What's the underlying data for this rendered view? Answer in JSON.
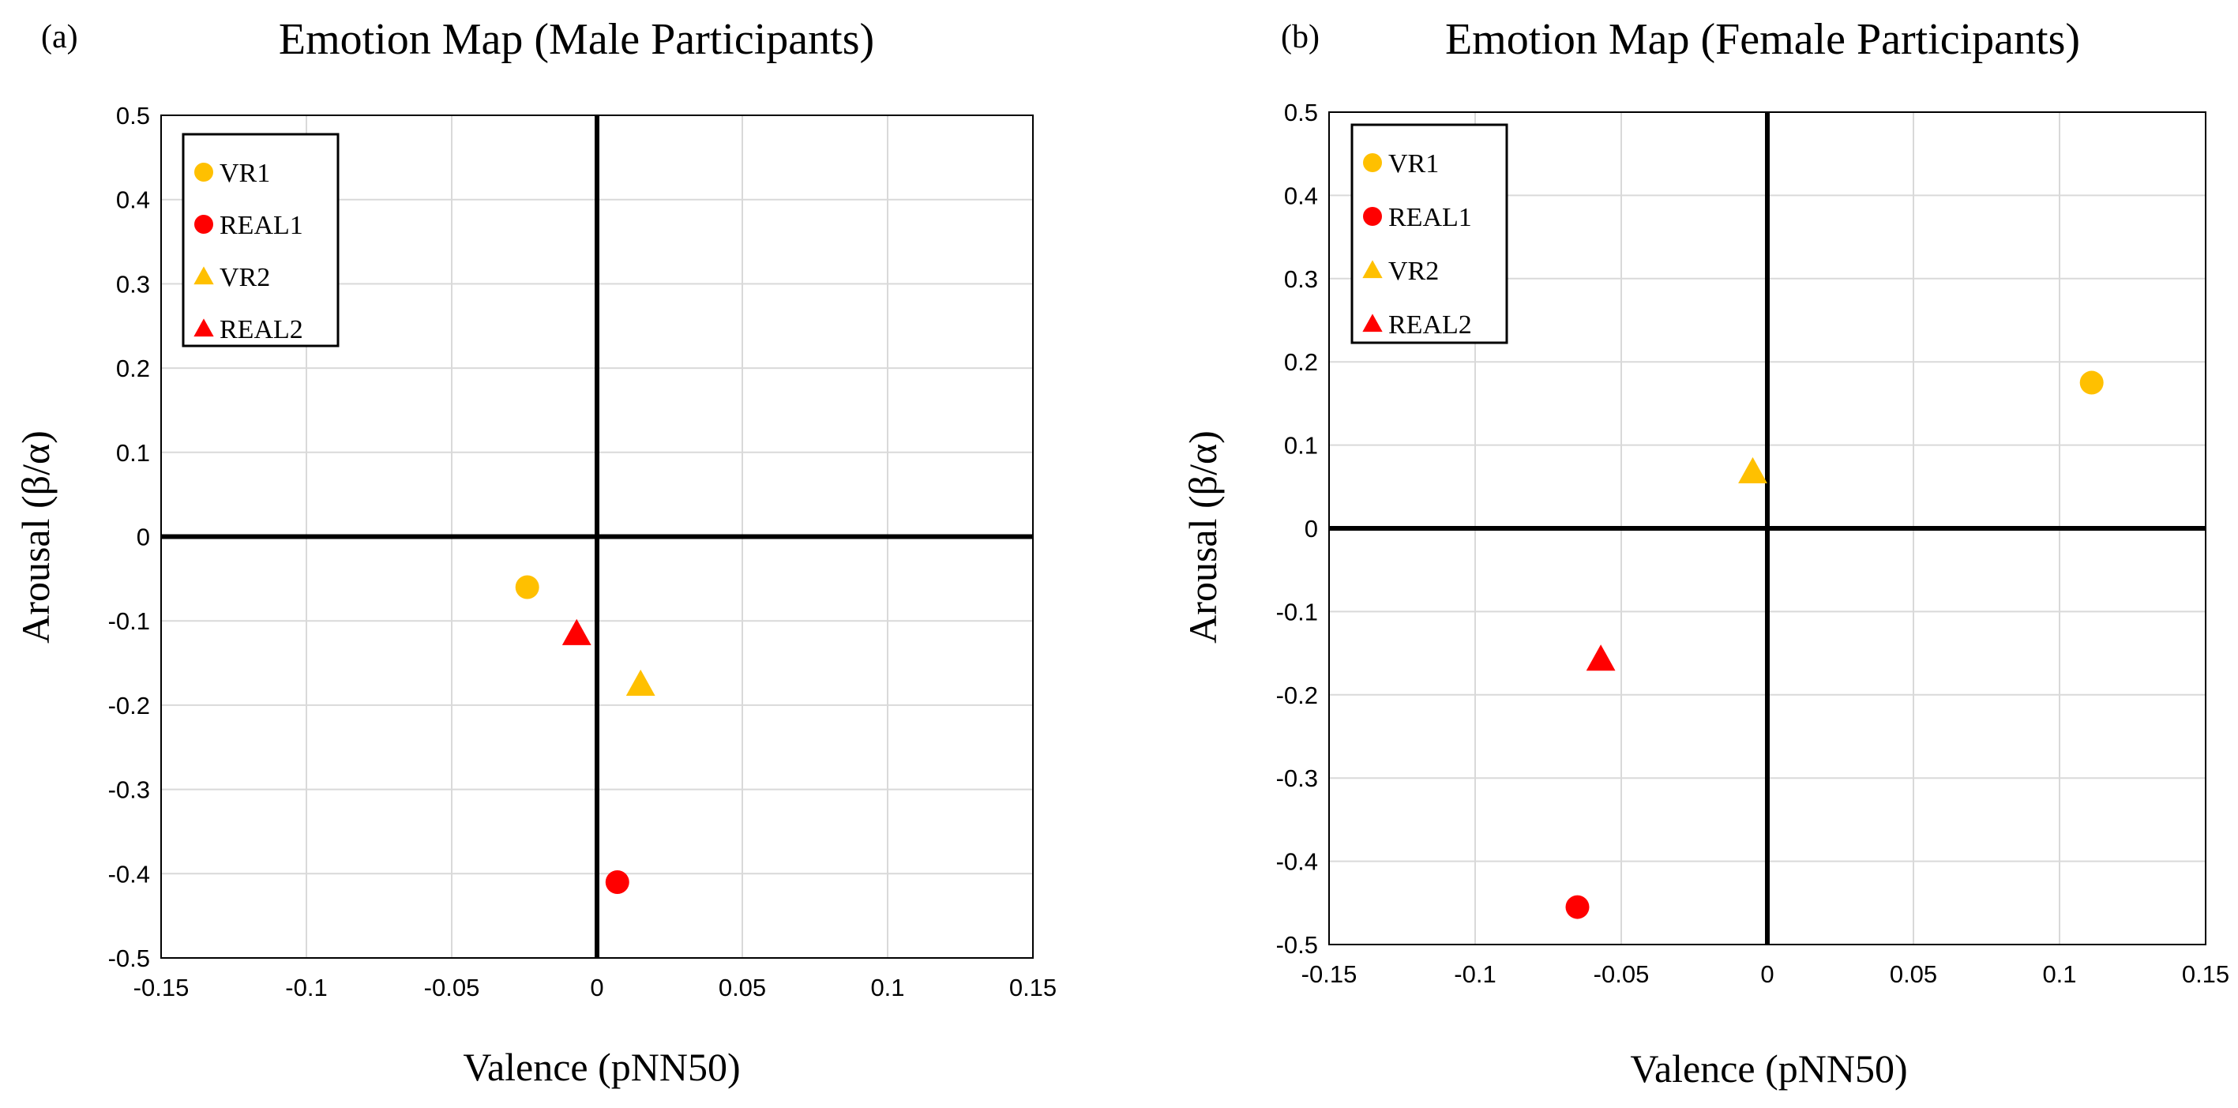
{
  "chart_data": [
    {
      "type": "scatter",
      "panel_label": "(a)",
      "title": "Emotion Map (Male Participants)",
      "xlabel": "Valence (pNN50)",
      "ylabel": "Arousal (β/α)",
      "xlim": [
        -0.15,
        0.15
      ],
      "ylim": [
        -0.5,
        0.5
      ],
      "xticks": [
        -0.15,
        -0.1,
        -0.05,
        0,
        0.05,
        0.1,
        0.15
      ],
      "xtick_labels": [
        "-0.15",
        "-0.1",
        "-0.05",
        "0",
        "0.05",
        "0.1",
        "0.15"
      ],
      "yticks": [
        0.5,
        0.4,
        0.3,
        0.2,
        0.1,
        0,
        -0.1,
        -0.2,
        -0.3,
        -0.4,
        -0.5
      ],
      "ytick_labels": [
        "0.5",
        "0.4",
        "0.3",
        "0.2",
        "0.1",
        "0",
        "-0.1",
        "-0.2",
        "-0.3",
        "-0.4",
        "-0.5"
      ],
      "grid": true,
      "legend_position": "top-left",
      "series": [
        {
          "name": "VR1",
          "marker": "circle",
          "color": "#FFC000",
          "x": -0.024,
          "y": -0.06
        },
        {
          "name": "REAL1",
          "marker": "circle",
          "color": "#FF0000",
          "x": 0.007,
          "y": -0.41
        },
        {
          "name": "VR2",
          "marker": "triangle",
          "color": "#FFC000",
          "x": 0.015,
          "y": -0.175
        },
        {
          "name": "REAL2",
          "marker": "triangle",
          "color": "#FF0000",
          "x": -0.007,
          "y": -0.115
        }
      ]
    },
    {
      "type": "scatter",
      "panel_label": "(b)",
      "title": "Emotion Map (Female Participants)",
      "xlabel": "Valence (pNN50)",
      "ylabel": "Arousal (β/α)",
      "xlim": [
        -0.15,
        0.15
      ],
      "ylim": [
        -0.5,
        0.5
      ],
      "xticks": [
        -0.15,
        -0.1,
        -0.05,
        0,
        0.05,
        0.1,
        0.15
      ],
      "xtick_labels": [
        "-0.15",
        "-0.1",
        "-0.05",
        "0",
        "0.05",
        "0.1",
        "0.15"
      ],
      "yticks": [
        0.5,
        0.4,
        0.3,
        0.2,
        0.1,
        0,
        -0.1,
        -0.2,
        -0.3,
        -0.4,
        -0.5
      ],
      "ytick_labels": [
        "0.5",
        "0.4",
        "0.3",
        "0.2",
        "0.1",
        "0",
        "-0.1",
        "-0.2",
        "-0.3",
        "-0.4",
        "-0.5"
      ],
      "grid": true,
      "legend_position": "top-left",
      "series": [
        {
          "name": "VR1",
          "marker": "circle",
          "color": "#FFC000",
          "x": 0.111,
          "y": 0.175
        },
        {
          "name": "REAL1",
          "marker": "circle",
          "color": "#FF0000",
          "x": -0.065,
          "y": -0.455
        },
        {
          "name": "VR2",
          "marker": "triangle",
          "color": "#FFC000",
          "x": -0.005,
          "y": 0.068
        },
        {
          "name": "REAL2",
          "marker": "triangle",
          "color": "#FF0000",
          "x": -0.057,
          "y": -0.157
        }
      ]
    }
  ]
}
